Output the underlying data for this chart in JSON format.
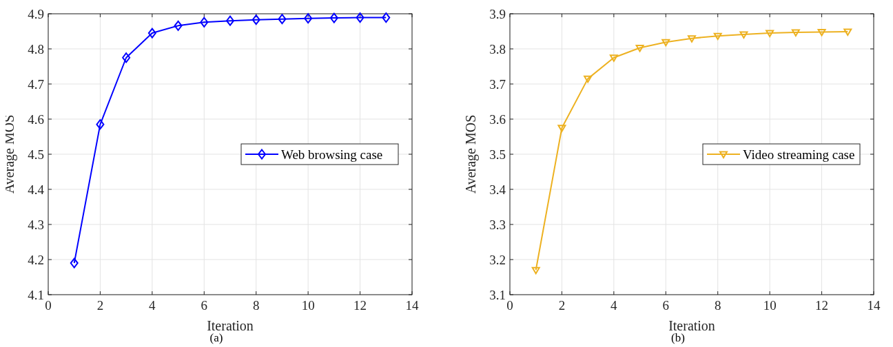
{
  "chart_data": [
    {
      "type": "line",
      "xlabel": "Iteration",
      "ylabel": "Average MOS",
      "x": [
        1,
        2,
        3,
        4,
        5,
        6,
        7,
        8,
        9,
        10,
        11,
        12,
        13
      ],
      "series": [
        {
          "name": "Web browsing case",
          "color": "#0000ff",
          "values": [
            4.19,
            4.585,
            4.775,
            4.845,
            4.866,
            4.876,
            4.88,
            4.883,
            4.885,
            4.887,
            4.888,
            4.889,
            4.889
          ]
        }
      ],
      "xlim": [
        0,
        14
      ],
      "xticks": [
        0,
        2,
        4,
        6,
        8,
        10,
        12,
        14
      ],
      "ylim": [
        4.1,
        4.9
      ],
      "yticks": [
        4.1,
        4.2,
        4.3,
        4.4,
        4.5,
        4.6,
        4.7,
        4.8,
        4.9
      ],
      "grid": true,
      "legend": "right",
      "marker": "diamond",
      "annotations": [
        "(a)"
      ]
    },
    {
      "type": "line",
      "xlabel": "Iteration",
      "ylabel": "Average MOS",
      "x": [
        1,
        2,
        3,
        4,
        5,
        6,
        7,
        8,
        9,
        10,
        11,
        12,
        13
      ],
      "series": [
        {
          "name": "Video streaming case",
          "color": "#edb120",
          "values": [
            3.17,
            3.575,
            3.715,
            3.775,
            3.803,
            3.819,
            3.83,
            3.837,
            3.841,
            3.845,
            3.847,
            3.848,
            3.849
          ]
        }
      ],
      "xlim": [
        0,
        14
      ],
      "xticks": [
        0,
        2,
        4,
        6,
        8,
        10,
        12,
        14
      ],
      "ylim": [
        3.1,
        3.9
      ],
      "yticks": [
        3.1,
        3.2,
        3.3,
        3.4,
        3.5,
        3.6,
        3.7,
        3.8,
        3.9
      ],
      "grid": true,
      "legend": "right",
      "marker": "triangle",
      "annotations": [
        "(b)"
      ]
    }
  ]
}
